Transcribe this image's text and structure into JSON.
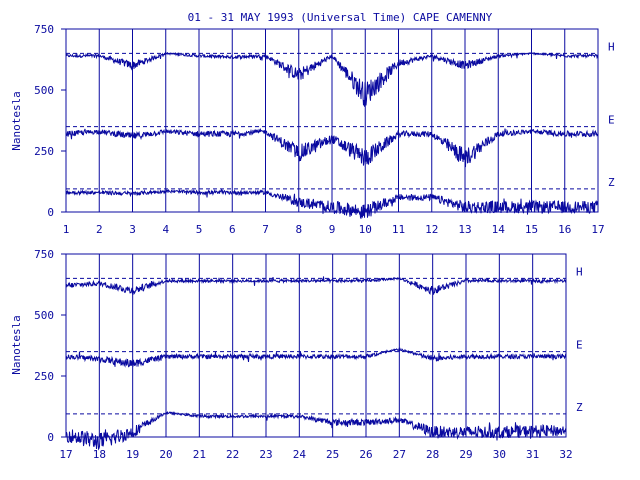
{
  "title": "01 - 31 MAY 1993 (Universal Time) CAPE CAMENNY",
  "ylabel": "Nanotesla",
  "colors": {
    "ink": "#0a0aa0",
    "background": "#ffffff"
  },
  "chart_data": [
    {
      "type": "line",
      "title": "01 - 31 MAY 1993 (Universal Time) CAPE CAMENNY",
      "ylabel": "Nanotesla",
      "xlabel": "",
      "xlim": [
        1,
        17
      ],
      "ylim": [
        0,
        750
      ],
      "ytick_labels": [
        "0",
        "250",
        "500",
        "750"
      ],
      "xtick_labels": [
        "1",
        "2",
        "3",
        "4",
        "5",
        "6",
        "7",
        "8",
        "9",
        "10",
        "11",
        "12",
        "13",
        "14",
        "15",
        "16",
        "17"
      ],
      "grid": "vertical day lines",
      "baselines": {
        "H": 650,
        "E": 350,
        "Z": 95
      },
      "series": [
        {
          "name": "H",
          "x": [
            1,
            2,
            3,
            4,
            5,
            6,
            7,
            8,
            9,
            10,
            11,
            12,
            13,
            14,
            15,
            16,
            17
          ],
          "values": [
            640,
            640,
            600,
            650,
            640,
            635,
            640,
            560,
            640,
            480,
            610,
            640,
            600,
            640,
            650,
            640,
            640
          ]
        },
        {
          "name": "E",
          "x": [
            1,
            2,
            3,
            4,
            5,
            6,
            7,
            8,
            9,
            10,
            11,
            12,
            13,
            14,
            15,
            16,
            17
          ],
          "values": [
            320,
            330,
            310,
            330,
            320,
            320,
            330,
            240,
            300,
            220,
            320,
            320,
            220,
            320,
            330,
            320,
            320
          ]
        },
        {
          "name": "Z",
          "x": [
            1,
            2,
            3,
            4,
            5,
            6,
            7,
            8,
            9,
            10,
            11,
            12,
            13,
            14,
            15,
            16,
            17
          ],
          "values": [
            80,
            80,
            75,
            85,
            80,
            80,
            80,
            40,
            20,
            0,
            60,
            60,
            20,
            20,
            20,
            20,
            20
          ]
        }
      ]
    },
    {
      "type": "line",
      "title": "",
      "ylabel": "Nanotesla",
      "xlabel": "",
      "xlim": [
        17,
        32
      ],
      "ylim": [
        0,
        750
      ],
      "ytick_labels": [
        "0",
        "250",
        "500",
        "750"
      ],
      "xtick_labels": [
        "17",
        "18",
        "19",
        "20",
        "21",
        "22",
        "23",
        "24",
        "25",
        "26",
        "27",
        "28",
        "29",
        "30",
        "31",
        "32"
      ],
      "grid": "vertical day lines",
      "baselines": {
        "H": 650,
        "E": 350,
        "Z": 95
      },
      "series": [
        {
          "name": "H",
          "x": [
            17,
            18,
            19,
            20,
            21,
            22,
            23,
            24,
            25,
            26,
            27,
            28,
            29,
            30,
            31,
            32
          ],
          "values": [
            620,
            630,
            600,
            640,
            640,
            640,
            640,
            640,
            640,
            640,
            650,
            600,
            640,
            640,
            640,
            640
          ]
        },
        {
          "name": "E",
          "x": [
            17,
            18,
            19,
            20,
            21,
            22,
            23,
            24,
            25,
            26,
            27,
            28,
            29,
            30,
            31,
            32
          ],
          "values": [
            330,
            320,
            300,
            330,
            330,
            330,
            330,
            330,
            330,
            330,
            360,
            320,
            330,
            330,
            330,
            330
          ]
        },
        {
          "name": "Z",
          "x": [
            17,
            18,
            19,
            20,
            21,
            22,
            23,
            24,
            25,
            26,
            27,
            28,
            29,
            30,
            31,
            32
          ],
          "values": [
            10,
            -20,
            20,
            100,
            85,
            85,
            85,
            85,
            60,
            60,
            70,
            20,
            20,
            20,
            25,
            25
          ]
        }
      ]
    }
  ]
}
